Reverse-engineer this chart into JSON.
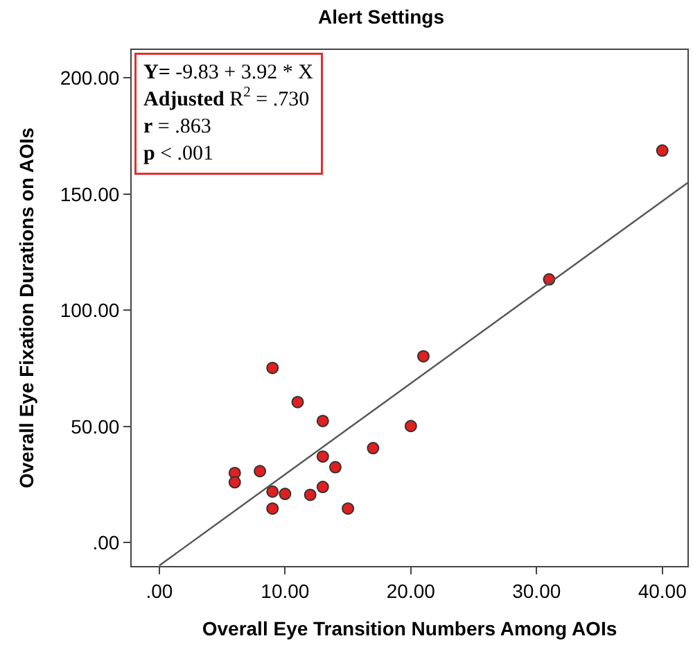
{
  "chart_data": {
    "type": "scatter",
    "title": "Alert Settings",
    "xlabel": "Overall Eye Transition Numbers Among AOIs",
    "ylabel": "Overall Eye Fixation Durations on AOIs",
    "xlim": [
      -2.2,
      42
    ],
    "ylim": [
      -10,
      212
    ],
    "xticks": [
      {
        "value": 0,
        "label": ".00"
      },
      {
        "value": 10,
        "label": "10.00"
      },
      {
        "value": 20,
        "label": "20.00"
      },
      {
        "value": 30,
        "label": "30.00"
      },
      {
        "value": 40,
        "label": "40.00"
      }
    ],
    "yticks": [
      {
        "value": 0,
        "label": ".00"
      },
      {
        "value": 50,
        "label": "50.00"
      },
      {
        "value": 100,
        "label": "100.00"
      },
      {
        "value": 150,
        "label": "150.00"
      },
      {
        "value": 200,
        "label": "200.00"
      }
    ],
    "series": [
      {
        "marker": "circle",
        "color": "#e02020",
        "x": [
          40,
          31,
          21,
          9,
          11,
          13,
          20,
          17,
          13,
          14,
          6,
          8,
          6,
          9,
          10,
          12,
          13,
          9,
          15
        ],
        "values": [
          168.7,
          113.3,
          80.2,
          75.2,
          60.5,
          52.4,
          50.2,
          40.7,
          37.1,
          32.5,
          30.0,
          30.8,
          26.0,
          22.0,
          21.0,
          20.6,
          24.0,
          14.7,
          14.7
        ]
      },
      {
        "type": "line",
        "color": "#555555",
        "line_style": "solid",
        "x": [
          0,
          42
        ],
        "values": [
          -9.8,
          154.8
        ]
      }
    ],
    "annotations": [
      "Y= -9.83 + 3.92 * X",
      "Adjusted R$^{2}$ = .730",
      "r = .863",
      "p < .001"
    ]
  }
}
